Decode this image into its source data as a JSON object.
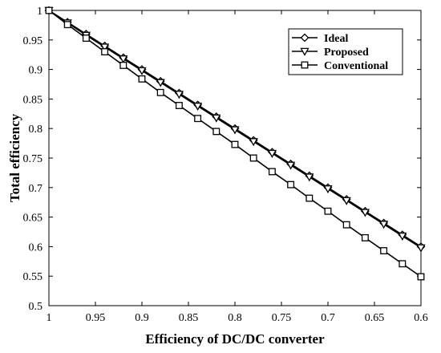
{
  "chart_data": {
    "type": "line",
    "xlabel": "Efficiency of DC/DC converter",
    "ylabel": "Total efficiency",
    "xlim": [
      1,
      0.6
    ],
    "ylim": [
      0.5,
      1
    ],
    "x_reversed": true,
    "grid": false,
    "legend_position": "top-right",
    "x_ticks": [
      1,
      0.95,
      0.9,
      0.85,
      0.8,
      0.75,
      0.7,
      0.65,
      0.6
    ],
    "x_tick_labels": [
      "1",
      "0.95",
      "0.9",
      "0.85",
      "0.8",
      "0.75",
      "0.7",
      "0.65",
      "0.6"
    ],
    "y_ticks": [
      0.5,
      0.55,
      0.6,
      0.65,
      0.7,
      0.75,
      0.8,
      0.85,
      0.9,
      0.95,
      1
    ],
    "y_tick_labels": [
      "0.5",
      "0.55",
      "0.6",
      "0.65",
      "0.7",
      "0.75",
      "0.8",
      "0.85",
      "0.9",
      "0.95",
      "1"
    ],
    "x": [
      1.0,
      0.98,
      0.96,
      0.94,
      0.92,
      0.9,
      0.88,
      0.86,
      0.84,
      0.82,
      0.8,
      0.78,
      0.76,
      0.74,
      0.72,
      0.7,
      0.68,
      0.66,
      0.64,
      0.62,
      0.6
    ],
    "series": [
      {
        "name": "Ideal",
        "marker": "diamond",
        "color": "#000000",
        "values": [
          1.0,
          0.98,
          0.96,
          0.94,
          0.92,
          0.9,
          0.88,
          0.86,
          0.84,
          0.82,
          0.8,
          0.78,
          0.76,
          0.74,
          0.72,
          0.7,
          0.68,
          0.66,
          0.64,
          0.62,
          0.6
        ]
      },
      {
        "name": "Proposed",
        "marker": "triangle-down",
        "color": "#000000",
        "values": [
          1.0,
          0.979,
          0.958,
          0.938,
          0.918,
          0.898,
          0.878,
          0.858,
          0.838,
          0.818,
          0.798,
          0.778,
          0.758,
          0.738,
          0.718,
          0.698,
          0.678,
          0.658,
          0.638,
          0.618,
          0.598
        ]
      },
      {
        "name": "Conventional",
        "marker": "square",
        "color": "#000000",
        "values": [
          1.0,
          0.976,
          0.953,
          0.93,
          0.907,
          0.884,
          0.861,
          0.839,
          0.817,
          0.795,
          0.773,
          0.75,
          0.727,
          0.705,
          0.682,
          0.66,
          0.637,
          0.615,
          0.593,
          0.571,
          0.549
        ]
      }
    ]
  }
}
